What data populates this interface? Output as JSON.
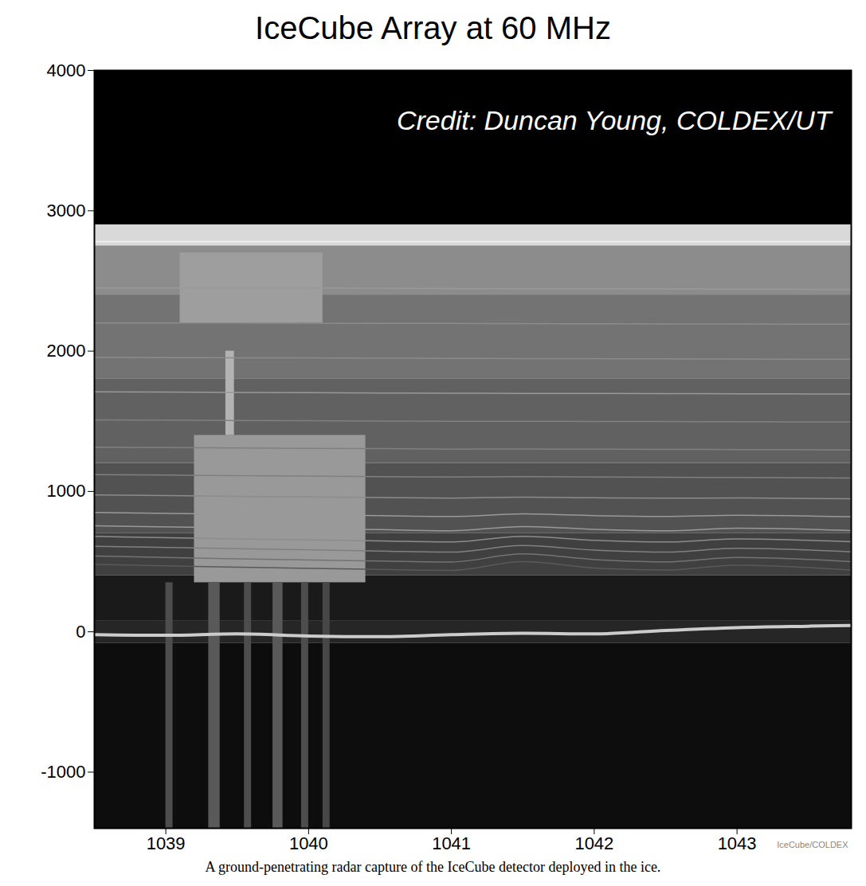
{
  "chart_data": {
    "type": "radargram",
    "title": "IceCube Array at 60 MHz",
    "caption": "A ground-penetrating radar capture of the IceCube detector deployed in the ice.",
    "credit": "Credit: Duncan Young, COLDEX/UT",
    "watermark": "IceCube/COLDEX",
    "xlim": [
      1038.5,
      1043.8
    ],
    "xticks": [
      1039,
      1040,
      1041,
      1042,
      1043
    ],
    "ylim": [
      -1400,
      4000
    ],
    "yticks": [
      -1000,
      0,
      1000,
      2000,
      3000,
      4000
    ],
    "grid": false,
    "intensity_range": [
      0,
      1
    ],
    "regions": [
      {
        "x": [
          1038.5,
          1043.8
        ],
        "y": [
          2900,
          4000
        ],
        "intensity": 0
      },
      {
        "x": [
          1038.5,
          1043.8
        ],
        "y": [
          2750,
          2900
        ],
        "intensity": 0.85
      },
      {
        "x": [
          1038.5,
          1043.8
        ],
        "y": [
          2400,
          2750
        ],
        "intensity": 0.55
      },
      {
        "x": [
          1038.5,
          1043.8
        ],
        "y": [
          1800,
          2400
        ],
        "intensity": 0.45
      },
      {
        "x": [
          1038.5,
          1043.8
        ],
        "y": [
          1200,
          1800
        ],
        "intensity": 0.38
      },
      {
        "x": [
          1038.5,
          1043.8
        ],
        "y": [
          700,
          1200
        ],
        "intensity": 0.32
      },
      {
        "x": [
          1038.5,
          1043.8
        ],
        "y": [
          400,
          700
        ],
        "intensity": 0.25
      },
      {
        "x": [
          1038.5,
          1043.8
        ],
        "y": [
          80,
          400
        ],
        "intensity": 0.1
      },
      {
        "x": [
          1038.5,
          1043.8
        ],
        "y": [
          -80,
          80
        ],
        "intensity": 0.15
      },
      {
        "x": [
          1038.5,
          1043.8
        ],
        "y": [
          -1400,
          -80
        ],
        "intensity": 0.05
      },
      {
        "x": [
          1039.1,
          1040.1
        ],
        "y": [
          2200,
          2700
        ],
        "intensity": 0.62
      },
      {
        "x": [
          1039.2,
          1040.4
        ],
        "y": [
          350,
          1400
        ],
        "intensity": 0.6
      },
      {
        "x": [
          1039.42,
          1039.48
        ],
        "y": [
          1400,
          2000
        ],
        "intensity": 0.7
      },
      {
        "x": [
          1039.0,
          1039.05
        ],
        "y": [
          -1400,
          350
        ],
        "intensity": 0.3
      },
      {
        "x": [
          1039.3,
          1039.38
        ],
        "y": [
          -1400,
          350
        ],
        "intensity": 0.35
      },
      {
        "x": [
          1039.55,
          1039.6
        ],
        "y": [
          -1400,
          350
        ],
        "intensity": 0.3
      },
      {
        "x": [
          1039.75,
          1039.82
        ],
        "y": [
          -1400,
          350
        ],
        "intensity": 0.35
      },
      {
        "x": [
          1039.95,
          1040.0
        ],
        "y": [
          -1400,
          350
        ],
        "intensity": 0.3
      },
      {
        "x": [
          1040.1,
          1040.15
        ],
        "y": [
          -1400,
          350
        ],
        "intensity": 0.28
      }
    ],
    "layer_x": [
      1038.5,
      1039.5,
      1040.5,
      1041.0,
      1041.5,
      1042.0,
      1042.5,
      1043.0,
      1043.8
    ],
    "layers": [
      {
        "y": [
          2780,
          2780,
          2780,
          2780,
          2780,
          2780,
          2780,
          2780,
          2780
        ],
        "intensity": 0.95
      },
      {
        "y": [
          2450,
          2450,
          2448,
          2446,
          2445,
          2444,
          2443,
          2442,
          2440
        ],
        "intensity": 0.6
      },
      {
        "y": [
          2200,
          2200,
          2198,
          2197,
          2196,
          2195,
          2194,
          2193,
          2192
        ],
        "intensity": 0.55
      },
      {
        "y": [
          1955,
          1953,
          1950,
          1948,
          1947,
          1946,
          1945,
          1944,
          1942
        ],
        "intensity": 0.55
      },
      {
        "y": [
          1710,
          1706,
          1702,
          1700,
          1699,
          1698,
          1697,
          1696,
          1694
        ],
        "intensity": 0.6
      },
      {
        "y": [
          1510,
          1506,
          1502,
          1500,
          1500,
          1499,
          1498,
          1497,
          1495
        ],
        "intensity": 0.5
      },
      {
        "y": [
          1315,
          1310,
          1305,
          1302,
          1303,
          1301,
          1300,
          1299,
          1296
        ],
        "intensity": 0.5
      },
      {
        "y": [
          1120,
          1113,
          1106,
          1103,
          1106,
          1103,
          1101,
          1100,
          1096
        ],
        "intensity": 0.5
      },
      {
        "y": [
          975,
          966,
          957,
          953,
          960,
          955,
          952,
          954,
          948
        ],
        "intensity": 0.55
      },
      {
        "y": [
          850,
          838,
          828,
          822,
          840,
          828,
          822,
          830,
          820
        ],
        "intensity": 0.6
      },
      {
        "y": [
          755,
          740,
          728,
          720,
          750,
          730,
          720,
          738,
          722
        ],
        "intensity": 0.6
      },
      {
        "y": [
          680,
          662,
          648,
          640,
          680,
          652,
          640,
          662,
          642
        ],
        "intensity": 0.55
      },
      {
        "y": [
          610,
          592,
          576,
          568,
          615,
          582,
          568,
          595,
          570
        ],
        "intensity": 0.5
      },
      {
        "y": [
          540,
          520,
          505,
          498,
          555,
          515,
          498,
          530,
          500
        ],
        "intensity": 0.45
      },
      {
        "y": [
          480,
          460,
          445,
          438,
          500,
          455,
          440,
          475,
          440
        ],
        "intensity": 0.35
      }
    ],
    "bed": {
      "x": [
        1038.5,
        1039.0,
        1039.5,
        1040.0,
        1040.5,
        1041.0,
        1041.5,
        1042.0,
        1042.5,
        1043.0,
        1043.5,
        1043.8
      ],
      "y": [
        -20,
        -25,
        -15,
        -30,
        -35,
        -20,
        -10,
        -15,
        10,
        30,
        40,
        45
      ],
      "intensity": 0.8
    }
  }
}
